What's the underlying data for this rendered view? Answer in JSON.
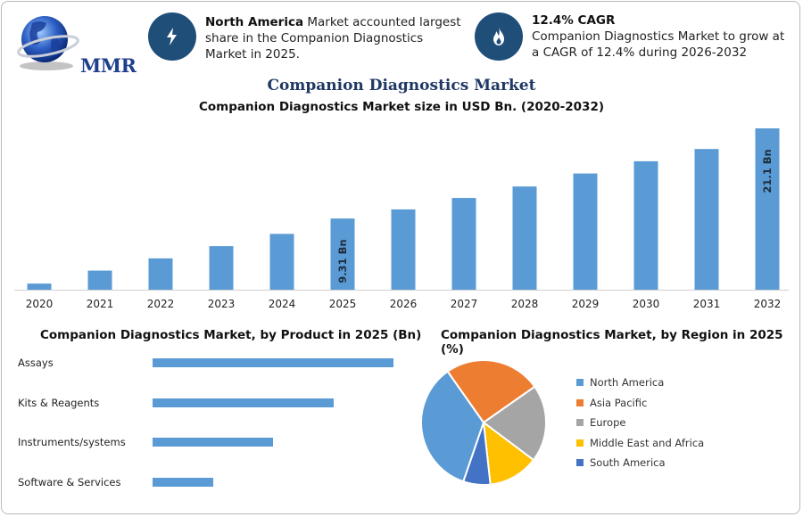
{
  "logo": {
    "text": "MMR"
  },
  "info": [
    {
      "icon": "lightning-icon",
      "bold": "North America",
      "text": " Market accounted largest share in the Companion Diagnostics Market in 2025."
    },
    {
      "icon": "flame-icon",
      "bold": "12.4% CAGR",
      "text": "Companion Diagnostics Market to grow at a CAGR of 12.4% during 2026-2032"
    }
  ],
  "title": "Companion Diagnostics Market",
  "colors": {
    "bar": "#5b9bd5",
    "title": "#1f3864",
    "icon_bg": "#1f4e79"
  },
  "chart_data": [
    {
      "type": "bar",
      "title": "Companion Diagnostics Market size in USD Bn. (2020-2032)",
      "categories": [
        "2020",
        "2021",
        "2022",
        "2023",
        "2024",
        "2025",
        "2026",
        "2027",
        "2028",
        "2029",
        "2030",
        "2031",
        "2032"
      ],
      "values": [
        0.8,
        2.5,
        4.1,
        5.7,
        7.3,
        9.31,
        10.5,
        12.0,
        13.5,
        15.2,
        16.8,
        18.4,
        21.1
      ],
      "data_labels": {
        "2025": "9.31 Bn",
        "2032": "21.1 Bn"
      },
      "ylim": [
        0,
        21.1
      ],
      "grid": false
    },
    {
      "type": "bar",
      "orientation": "horizontal",
      "title": "Companion Diagnostics Market, by Product in 2025 (Bn)",
      "categories": [
        "Assays",
        "Kits & Reagents",
        "Instruments/systems",
        "Software & Services"
      ],
      "values": [
        4.0,
        3.0,
        2.0,
        1.0
      ]
    },
    {
      "type": "pie",
      "title": "Companion Diagnostics Market, by Region in 2025 (%)",
      "labels": [
        "North America",
        "Asia Pacific",
        "Europe",
        "Middle East and Africa",
        "South America"
      ],
      "values": [
        35,
        25,
        20,
        13,
        7
      ],
      "colors": [
        "#5b9bd5",
        "#ed7d31",
        "#a5a5a5",
        "#ffc000",
        "#4472c4"
      ],
      "legend": "right"
    }
  ]
}
